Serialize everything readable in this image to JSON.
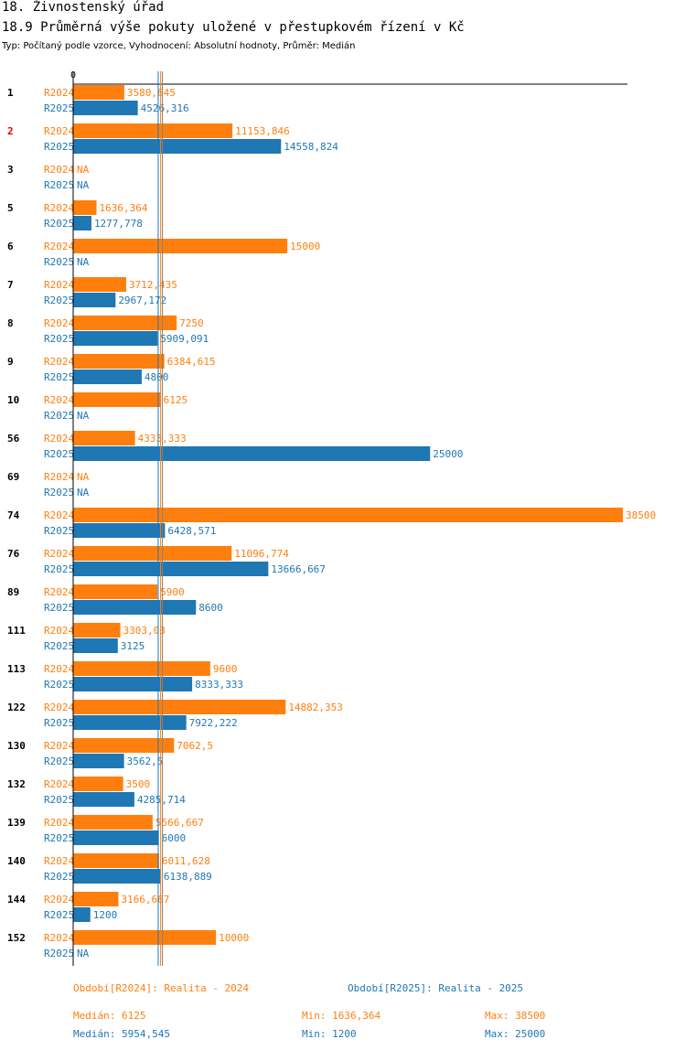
{
  "header": {
    "title": "18. Živnostenský úřad",
    "subtitle": "18.9 Průměrná výše pokuty uložené v přestupkovém řízení v Kč",
    "info": "Typ: Počítaný podle vzorce, Vyhodnocení: Absolutní hodnoty, Průměr: Medián"
  },
  "colors": {
    "r2024": "#ff7f0e",
    "r2025": "#1f77b4",
    "highlight": "#e00000"
  },
  "chart_data": {
    "type": "bar",
    "orientation": "horizontal",
    "axis_zero_label": "0",
    "xlim": [
      0,
      38500
    ],
    "series_names": [
      "R2024",
      "R2025"
    ],
    "groups": [
      {
        "id": "1",
        "highlight": false,
        "values": [
          3580.645,
          4526.316
        ],
        "labels": [
          "3580,645",
          "4526,316"
        ]
      },
      {
        "id": "2",
        "highlight": true,
        "values": [
          11153.846,
          14558.824
        ],
        "labels": [
          "11153,846",
          "14558,824"
        ]
      },
      {
        "id": "3",
        "highlight": false,
        "values": [
          null,
          null
        ],
        "labels": [
          "NA",
          "NA"
        ]
      },
      {
        "id": "5",
        "highlight": false,
        "values": [
          1636.364,
          1277.778
        ],
        "labels": [
          "1636,364",
          "1277,778"
        ]
      },
      {
        "id": "6",
        "highlight": false,
        "values": [
          15000,
          null
        ],
        "labels": [
          "15000",
          "NA"
        ]
      },
      {
        "id": "7",
        "highlight": false,
        "values": [
          3712.435,
          2967.172
        ],
        "labels": [
          "3712,435",
          "2967,172"
        ]
      },
      {
        "id": "8",
        "highlight": false,
        "values": [
          7250,
          5909.091
        ],
        "labels": [
          "7250",
          "5909,091"
        ]
      },
      {
        "id": "9",
        "highlight": false,
        "values": [
          6384.615,
          4800
        ],
        "labels": [
          "6384,615",
          "4800"
        ]
      },
      {
        "id": "10",
        "highlight": false,
        "values": [
          6125,
          null
        ],
        "labels": [
          "6125",
          "NA"
        ]
      },
      {
        "id": "56",
        "highlight": false,
        "values": [
          4333.333,
          25000
        ],
        "labels": [
          "4333,333",
          "25000"
        ]
      },
      {
        "id": "69",
        "highlight": false,
        "values": [
          null,
          null
        ],
        "labels": [
          "NA",
          "NA"
        ]
      },
      {
        "id": "74",
        "highlight": false,
        "values": [
          38500,
          6428.571
        ],
        "labels": [
          "38500",
          "6428,571"
        ]
      },
      {
        "id": "76",
        "highlight": false,
        "values": [
          11096.774,
          13666.667
        ],
        "labels": [
          "11096,774",
          "13666,667"
        ]
      },
      {
        "id": "89",
        "highlight": false,
        "values": [
          5900,
          8600
        ],
        "labels": [
          "5900",
          "8600"
        ]
      },
      {
        "id": "111",
        "highlight": false,
        "values": [
          3303.03,
          3125
        ],
        "labels": [
          "3303,03",
          "3125"
        ]
      },
      {
        "id": "113",
        "highlight": false,
        "values": [
          9600,
          8333.333
        ],
        "labels": [
          "9600",
          "8333,333"
        ]
      },
      {
        "id": "122",
        "highlight": false,
        "values": [
          14882.353,
          7922.222
        ],
        "labels": [
          "14882,353",
          "7922,222"
        ]
      },
      {
        "id": "130",
        "highlight": false,
        "values": [
          7062.5,
          3562.5
        ],
        "labels": [
          "7062,5",
          "3562,5"
        ]
      },
      {
        "id": "132",
        "highlight": false,
        "values": [
          3500,
          4285.714
        ],
        "labels": [
          "3500",
          "4285,714"
        ]
      },
      {
        "id": "139",
        "highlight": false,
        "values": [
          5566.667,
          6000
        ],
        "labels": [
          "5566,667",
          "6000"
        ]
      },
      {
        "id": "140",
        "highlight": false,
        "values": [
          6011.628,
          6138.889
        ],
        "labels": [
          "6011,628",
          "6138,889"
        ]
      },
      {
        "id": "144",
        "highlight": false,
        "values": [
          3166.667,
          1200
        ],
        "labels": [
          "3166,667",
          "1200"
        ]
      },
      {
        "id": "152",
        "highlight": false,
        "values": [
          10000,
          null
        ],
        "labels": [
          "10000",
          "NA"
        ]
      }
    ],
    "median_lines": [
      6125,
      5954.545
    ]
  },
  "legend": {
    "r2024": {
      "period": "Období[R2024]: Realita - 2024",
      "median": "Medián: 6125",
      "min": "Min: 1636,364",
      "max": "Max: 38500"
    },
    "r2025": {
      "period": "Období[R2025]: Realita - 2025",
      "median": "Medián: 5954,545",
      "min": "Min: 1200",
      "max": "Max: 25000"
    }
  }
}
